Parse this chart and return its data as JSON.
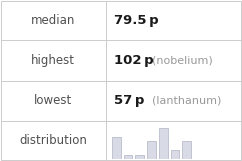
{
  "rows": [
    {
      "label": "median",
      "value": "79.5 p",
      "extra": ""
    },
    {
      "label": "highest",
      "value": "102 p",
      "extra": "(nobelium)"
    },
    {
      "label": "lowest",
      "value": "57 p",
      "extra": "(lanthanum)"
    },
    {
      "label": "distribution",
      "value": "",
      "extra": ""
    }
  ],
  "hist_bars": [
    5,
    1,
    1,
    4,
    7,
    2,
    4
  ],
  "bar_color": "#d8dae6",
  "bar_edge_color": "#b0b3c4",
  "grid_line_color": "#cccccc",
  "label_color": "#505050",
  "value_color": "#1a1a1a",
  "extra_color": "#999999",
  "bg_color": "#ffffff",
  "font_size_label": 8.5,
  "font_size_value": 9.5,
  "font_size_extra": 8.0,
  "col_split": 0.44
}
